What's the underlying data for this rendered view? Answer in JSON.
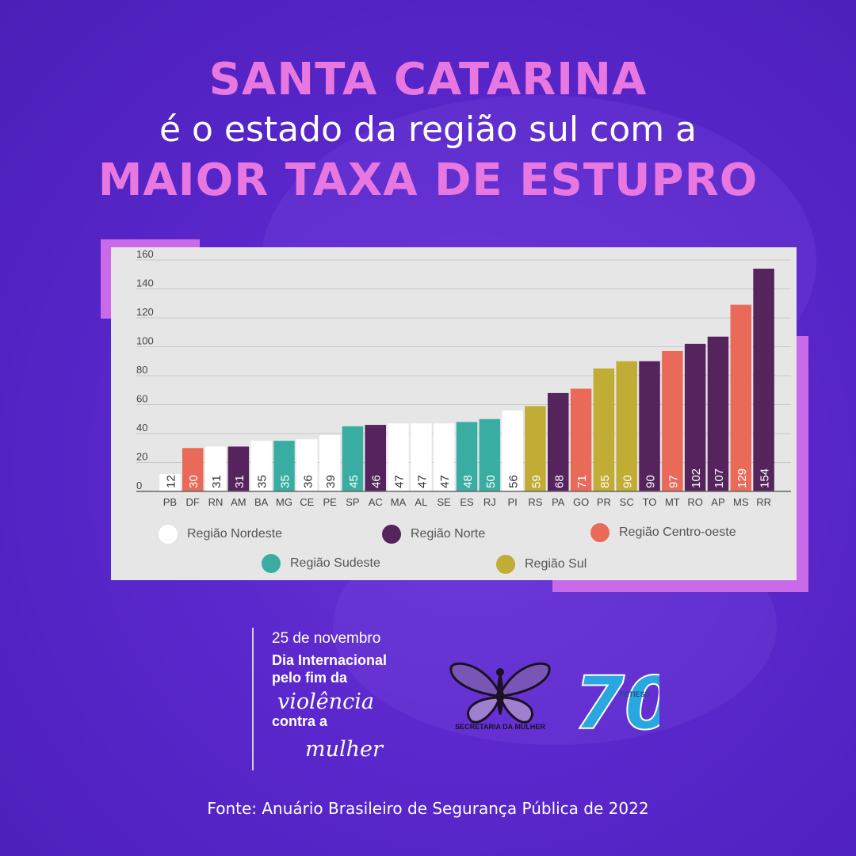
{
  "headline": {
    "line1": "SANTA CATARINA",
    "line2": "é o estado da região sul com a",
    "line3": "MAIOR TAXA DE ESTUPRO"
  },
  "colors": {
    "nordeste": "#ffffff",
    "norte": "#55245d",
    "centro_oeste": "#ea6a5a",
    "sudeste": "#3aada2",
    "sul": "#c1ac35"
  },
  "chart_data": {
    "type": "bar",
    "title": "",
    "xlabel": "",
    "ylabel": "",
    "ylim": [
      0,
      160
    ],
    "yticks": [
      0,
      20,
      40,
      60,
      80,
      100,
      120,
      140,
      160
    ],
    "grid": true,
    "legend_position": "bottom",
    "categories": [
      "PB",
      "DF",
      "RN",
      "AM",
      "BA",
      "MG",
      "CE",
      "PE",
      "SP",
      "AC",
      "MA",
      "AL",
      "SE",
      "ES",
      "RJ",
      "PI",
      "RS",
      "PA",
      "GO",
      "PR",
      "SC",
      "TO",
      "MT",
      "RO",
      "AP",
      "MS",
      "RR"
    ],
    "values": [
      12,
      30,
      31,
      31,
      35,
      35,
      36,
      39,
      45,
      46,
      47,
      47,
      47,
      48,
      50,
      56,
      59,
      68,
      71,
      85,
      90,
      90,
      97,
      102,
      107,
      129,
      154
    ],
    "regions": [
      "nordeste",
      "centro_oeste",
      "nordeste",
      "norte",
      "nordeste",
      "sudeste",
      "nordeste",
      "nordeste",
      "sudeste",
      "norte",
      "nordeste",
      "nordeste",
      "nordeste",
      "sudeste",
      "sudeste",
      "nordeste",
      "sul",
      "norte",
      "centro_oeste",
      "sul",
      "sul",
      "norte",
      "centro_oeste",
      "norte",
      "norte",
      "centro_oeste",
      "norte"
    ],
    "legend": [
      {
        "key": "nordeste",
        "label": "Região Nordeste"
      },
      {
        "key": "norte",
        "label": "Região Norte"
      },
      {
        "key": "centro_oeste",
        "label": "Região Centro-oeste"
      },
      {
        "key": "sudeste",
        "label": "Região Sudeste"
      },
      {
        "key": "sul",
        "label": "Região Sul"
      }
    ]
  },
  "event": {
    "date": "25 de novembro",
    "line1": "Dia Internacional",
    "line2": "pelo fim da",
    "line3": "violência",
    "line4": "contra a",
    "line5": "mulher"
  },
  "logos": {
    "butterfly_text": "SECRETARIA DA MULHER",
    "fetiesc_number": "70",
    "fetiesc_text": "FETIESC"
  },
  "source": "Fonte: Anuário Brasileiro de Segurança Pública de 2022"
}
